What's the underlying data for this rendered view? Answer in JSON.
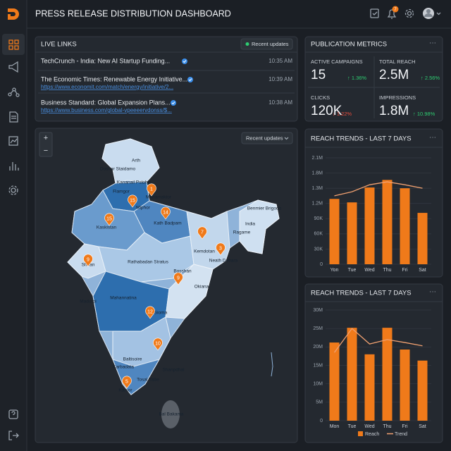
{
  "header": {
    "title": "PRESS RELEASE DISTRIBUTION DASHBOARD",
    "notification_count": "7"
  },
  "live_links": {
    "title": "LIVE LINKS",
    "filter": "Recent updates",
    "items": [
      {
        "title": "TechCrunch - India: New AI Startup Funding...",
        "time": "10:35 AM"
      },
      {
        "title": "The Economic Times: Renewable Energy Initiative...",
        "time": "10:39 AM",
        "url": "https://www.economit.com/match/energy/initiative/2..."
      },
      {
        "title": "Business Standard: Global Expansion Plans...",
        "time": "10:38 AM",
        "url": "https://www.business.com/global-vpeeeervdonss/$..."
      }
    ]
  },
  "metrics": {
    "title": "PUBLICATION METRICS",
    "items": [
      {
        "label": "ACTIVE CAMPAIGNS",
        "value": "15",
        "change": "↑ 1.36%",
        "color": "#2ecc71"
      },
      {
        "label": "TOTAL REACH",
        "value": "2.5M",
        "change": "↑ 2.56%",
        "color": "#2ecc71"
      },
      {
        "label": "CLICKS",
        "value": "120K",
        "change": "↓ 1.22%",
        "color": "#e74c3c"
      },
      {
        "label": "IMPRESSIONS",
        "value": "1.8M",
        "change": "↑ 10.98%",
        "color": "#2ecc71"
      }
    ]
  },
  "map": {
    "filter": "Recent updates",
    "zoom_in": "+",
    "zoom_out": "−",
    "pins": [
      "1",
      "15",
      "14",
      "7",
      "3",
      "15",
      "9",
      "9",
      "12",
      "10",
      "5"
    ],
    "places": [
      "Arth",
      "Doshar Staidamo",
      "Kananail Pstohic",
      "Flamgor",
      "Mahamaktor",
      "Mlphor",
      "Kath Badpam",
      "Kaskistan",
      "Benmier Brigodo",
      "India",
      "Ragame",
      "Kemdotan",
      "Neath Debara",
      "Rathabadan Stratus",
      "Bosshan",
      "Okiana",
      "Mahannatina",
      "Madoroi",
      "Sioma",
      "Karbadata",
      "Baltisoire",
      "Shanpdhal",
      "Tosal Tallie",
      "Karsor",
      "Bal Bakama",
      "Shean"
    ]
  },
  "chart_data": [
    {
      "type": "bar",
      "title": "REACH TRENDS - LAST 7 DAYS",
      "categories": [
        "Yon",
        "Tue",
        "Wed",
        "Thu",
        "Fri",
        "Sat"
      ],
      "y_categories": [
        "0",
        "30K",
        "60K",
        "90K",
        "1.2M",
        "1.3M",
        "1.8M",
        "2.1M"
      ],
      "ylim": [
        0,
        7
      ],
      "grid": true,
      "series": [
        {
          "mark": "bar",
          "color": "#f07a1a",
          "values": [
            4.3,
            4.07,
            5.05,
            5.55,
            5.0,
            3.38
          ]
        },
        {
          "mark": "line",
          "color": "#f0a070",
          "values": [
            4.5,
            4.77,
            5.23,
            5.42,
            5.23,
            5.0
          ]
        }
      ]
    },
    {
      "type": "bar",
      "title": "REACH TRENDS - LAST 7 DAYS",
      "categories": [
        "Mon",
        "Tue",
        "Wed",
        "Thu",
        "Fri",
        "Sat"
      ],
      "ylim": [
        0,
        30000000
      ],
      "yticks": [
        0,
        {
          "value": 5000000,
          "label": "5M"
        },
        {
          "value": 10000000,
          "label": "10M"
        },
        {
          "value": 15000000,
          "label": "15M"
        },
        {
          "value": 20000000,
          "label": "20M"
        },
        {
          "value": 25000000,
          "label": "25M"
        },
        {
          "value": 30000000,
          "label": "30M"
        }
      ],
      "grid": true,
      "legend": "bottom",
      "series": [
        {
          "name": "Reach",
          "mark": "bar",
          "color": "#f07a1a",
          "values": [
            21200000,
            25200000,
            18000000,
            25200000,
            19300000,
            16300000
          ]
        },
        {
          "name": "Trend",
          "mark": "line",
          "color": "#f0a070",
          "values": [
            18500000,
            25000000,
            20800000,
            22000000,
            21200000,
            20300000
          ]
        }
      ]
    }
  ]
}
